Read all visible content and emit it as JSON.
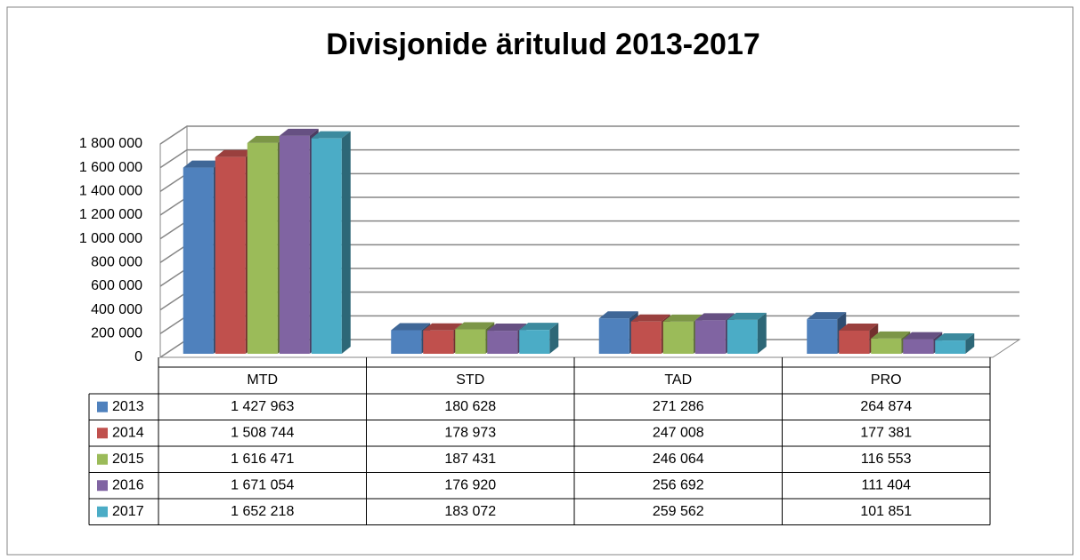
{
  "chart_data": {
    "type": "bar3d",
    "title": "Divisjonide äritulud 2013-2017",
    "categories": [
      "MTD",
      "STD",
      "TAD",
      "PRO"
    ],
    "series": [
      {
        "name": "2013",
        "color": "#4f81bd",
        "values": [
          1427963,
          180628,
          271286,
          264874
        ],
        "value_labels": [
          "1 427 963",
          "180 628",
          "271 286",
          "264 874"
        ]
      },
      {
        "name": "2014",
        "color": "#c0504d",
        "values": [
          1508744,
          178973,
          247008,
          177381
        ],
        "value_labels": [
          "1 508 744",
          "178 973",
          "247 008",
          "177 381"
        ]
      },
      {
        "name": "2015",
        "color": "#9bbb59",
        "values": [
          1616471,
          187431,
          246064,
          116553
        ],
        "value_labels": [
          "1 616 471",
          "187 431",
          "246 064",
          "116 553"
        ]
      },
      {
        "name": "2016",
        "color": "#8064a2",
        "values": [
          1671054,
          176920,
          256692,
          111404
        ],
        "value_labels": [
          "1 671 054",
          "176 920",
          "256 692",
          "111 404"
        ]
      },
      {
        "name": "2017",
        "color": "#4bacc6",
        "values": [
          1652218,
          183072,
          259562,
          101851
        ],
        "value_labels": [
          "1 652 218",
          "183 072",
          "259 562",
          "101 851"
        ]
      }
    ],
    "ylim": [
      0,
      1800000
    ],
    "yticks": [
      0,
      {
        "value": 200000,
        "label": "200 000"
      },
      {
        "value": 400000,
        "label": "400 000"
      },
      {
        "value": 600000,
        "label": "600 000"
      },
      {
        "value": 800000,
        "label": "800 000"
      },
      {
        "value": 1000000,
        "label": "1 000 000"
      },
      {
        "value": 1200000,
        "label": "1 200 000"
      },
      {
        "value": 1400000,
        "label": "1 400 000"
      },
      {
        "value": 1600000,
        "label": "1 600 000"
      },
      {
        "value": 1800000,
        "label": "1 800 000"
      }
    ],
    "grid": true,
    "data_table": true
  }
}
